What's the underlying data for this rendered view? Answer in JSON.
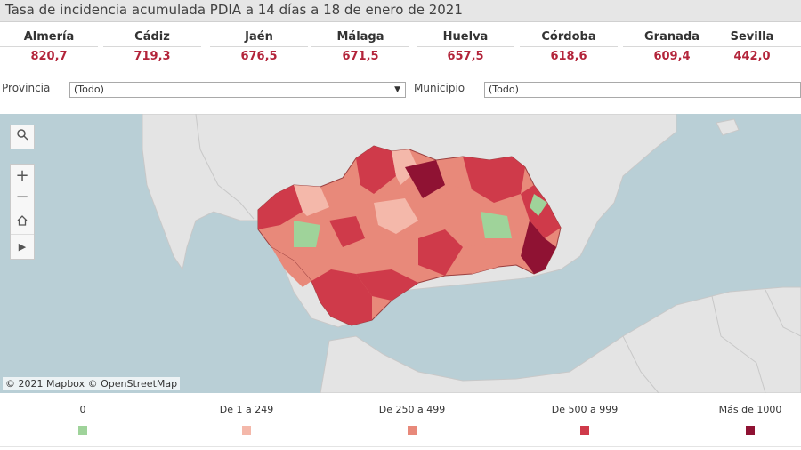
{
  "title": "Tasa de incidencia acumulada PDIA a 14 días a 18 de enero de 2021",
  "provinces": [
    {
      "name": "Almería",
      "value": "820,7"
    },
    {
      "name": "Cádiz",
      "value": "719,3"
    },
    {
      "name": "Jaén",
      "value": "676,5"
    },
    {
      "name": "Málaga",
      "value": "671,5"
    },
    {
      "name": "Huelva",
      "value": "657,5"
    },
    {
      "name": "Córdoba",
      "value": "618,6"
    },
    {
      "name": "Granada",
      "value": "609,4"
    },
    {
      "name": "Sevilla",
      "value": "442,0"
    }
  ],
  "filters": {
    "provincia_label": "Provincia",
    "provincia_value": "(Todo)",
    "municipio_label": "Municipio",
    "municipio_value": "(Todo)"
  },
  "map": {
    "attribution": "© 2021 Mapbox  © OpenStreetMap",
    "tools": [
      "search-icon",
      "zoom-in-icon",
      "zoom-out-icon",
      "home-icon",
      "play-icon"
    ]
  },
  "legend": [
    {
      "label": "0",
      "color": "#9fd39a"
    },
    {
      "label": "De 1 a 249",
      "color": "#f4b8aa"
    },
    {
      "label": "De 250 a 499",
      "color": "#e8897a"
    },
    {
      "label": "De 500 a 999",
      "color": "#cf3a4a"
    },
    {
      "label": "Más de 1000",
      "color": "#8f1233"
    }
  ],
  "colors": {
    "accent": "#b3243a",
    "sea": "#b9cfd6",
    "land": "#e4e4e4"
  }
}
